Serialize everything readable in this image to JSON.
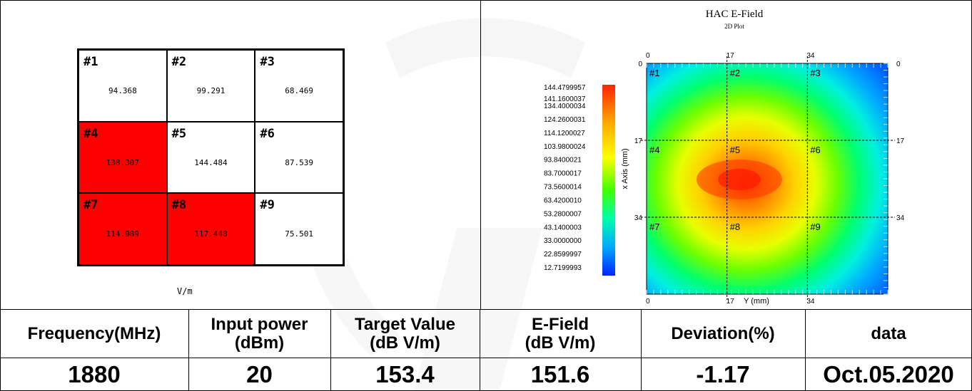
{
  "grid": {
    "unit": "V/m",
    "cells": [
      {
        "label": "#1",
        "value": "94.368",
        "hot": false
      },
      {
        "label": "#2",
        "value": "99.291",
        "hot": false
      },
      {
        "label": "#3",
        "value": "68.469",
        "hot": false
      },
      {
        "label": "#4",
        "value": "138.307",
        "hot": true
      },
      {
        "label": "#5",
        "value": "144.484",
        "hot": false
      },
      {
        "label": "#6",
        "value": "87.539",
        "hot": false
      },
      {
        "label": "#7",
        "value": "114.989",
        "hot": true
      },
      {
        "label": "#8",
        "value": "117.448",
        "hot": true
      },
      {
        "label": "#9",
        "value": "75.501",
        "hot": false
      }
    ],
    "colors": {
      "hot": "#ff0000",
      "normal": "#ffffff"
    }
  },
  "chart_data": {
    "type": "heatmap",
    "title": "HAC E-Field",
    "subtitle": "2D Plot",
    "xlabel": "Y (mm)",
    "ylabel": "x Axis (mm)",
    "x_ticks": [
      "0",
      "17",
      "34"
    ],
    "y_ticks": [
      "0",
      "17",
      "34"
    ],
    "xlim": [
      0,
      51
    ],
    "ylim": [
      0,
      51
    ],
    "grid_dividers": [
      17,
      34
    ],
    "region_labels": [
      "#1",
      "#2",
      "#3",
      "#4",
      "#5",
      "#6",
      "#7",
      "#8",
      "#9"
    ],
    "colorbar_values": [
      "144.4799957",
      "141.1600037",
      "134.4000034",
      "124.2600031",
      "114.1200027",
      "103.9800024",
      "93.8400021",
      "83.7000017",
      "73.5600014",
      "63.4200010",
      "53.2800007",
      "43.1400003",
      "33.0000000",
      "22.8599997",
      "12.7199993"
    ],
    "peak": {
      "x": 22,
      "y": 26,
      "value": 144.48
    }
  },
  "table": {
    "headers": [
      [
        "Frequency(MHz)"
      ],
      [
        "Input power",
        "(dBm)"
      ],
      [
        "Target Value",
        "(dB V/m)"
      ],
      [
        "E-Field",
        "(dB V/m)"
      ],
      [
        "Deviation(%)"
      ],
      [
        "data"
      ]
    ],
    "values": [
      "1880",
      "20",
      "153.4",
      "151.6",
      "-1.17",
      "Oct.05.2020"
    ]
  }
}
